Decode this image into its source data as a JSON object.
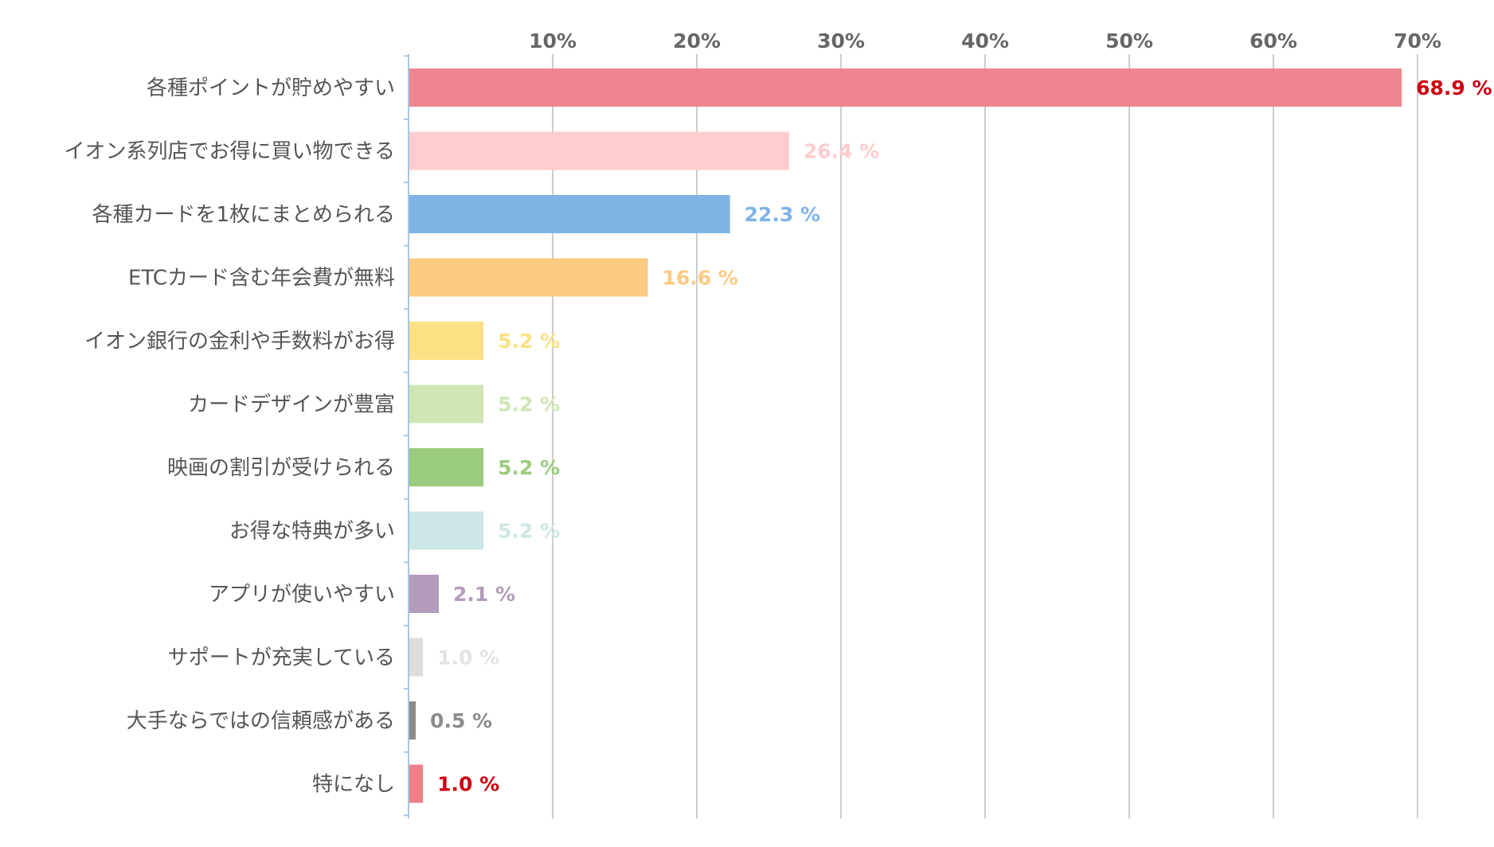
{
  "chart_data": {
    "type": "bar",
    "orientation": "horizontal",
    "x_ticks": [
      "10%",
      "20%",
      "30%",
      "40%",
      "50%",
      "60%",
      "70%"
    ],
    "xlim": [
      0,
      70
    ],
    "grid": true,
    "categories": [
      "各種ポイントが貯めやすい",
      "イオン系列店でお得に買い物できる",
      "各種カードを1枚にまとめられる",
      "ETCカード含む年会費が無料",
      "イオン銀行の金利や手数料がお得",
      "カードデザインが豊富",
      "映画の割引が受けられる",
      "お得な特典が多い",
      "アプリが使いやすい",
      "サポートが充実している",
      "大手ならではの信頼感がある",
      "特になし"
    ],
    "values": [
      68.9,
      26.4,
      22.3,
      16.6,
      5.2,
      5.2,
      5.2,
      5.2,
      2.1,
      1.0,
      0.5,
      1.0
    ],
    "value_labels": [
      "68.9 %",
      "26.4 %",
      "22.3 %",
      "16.6 %",
      "5.2 %",
      "5.2 %",
      "5.2 %",
      "5.2 %",
      "2.1 %",
      "1.0 %",
      "0.5 %",
      "1.0 %"
    ],
    "bar_colors": [
      "#ee868f",
      "#ffcccd",
      "#7fb3e6",
      "#fdca81",
      "#fbe183",
      "#cfe6b4",
      "#9bcb7d",
      "#cde6e6",
      "#b39bba",
      "#dcdcdc",
      "#8c8c8c",
      "#ef7f86"
    ],
    "label_colors": [
      "#cc0011",
      "#ffcccd",
      "#7fb3e6",
      "#fdca81",
      "#fbe183",
      "#cfe6b4",
      "#9bcb7d",
      "#cde6e6",
      "#b39bba",
      "#e3e3e3",
      "#8c8c8c",
      "#cc0011"
    ],
    "grid_color": "#bbbbbb",
    "axis_color": "#a8c6e0"
  }
}
